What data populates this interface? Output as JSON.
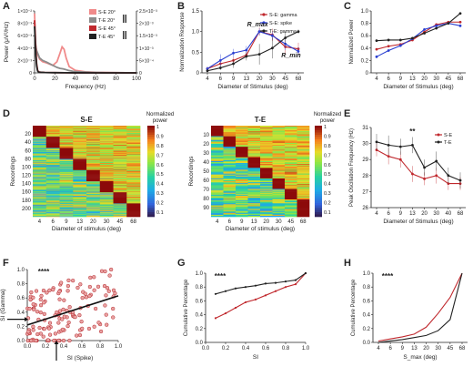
{
  "chart_data": [
    {
      "panel": "A",
      "type": "line",
      "xlabel": "Frequency (Hz)",
      "ylabel": "Power (μV²/Hz)",
      "xlim": [
        0,
        100
      ],
      "xticks": [
        0,
        20,
        40,
        60,
        80,
        100
      ],
      "left_axis": {
        "ylim": [
          0,
          0.01
        ],
        "ticks": [
          0,
          0.002,
          0.004,
          0.006,
          0.008,
          0.01
        ],
        "tick_labels": [
          "0",
          "2×10⁻³",
          "4×10⁻³",
          "6×10⁻³",
          "8×10⁻³",
          "1×10⁻²"
        ]
      },
      "right_axis": {
        "ylim": [
          0,
          0.0025
        ],
        "ticks": [
          0,
          0.0005,
          0.001,
          0.0015,
          0.002,
          0.0025
        ],
        "tick_labels": [
          "0",
          "5×10⁻⁴",
          "1×10⁻³",
          "1.5×10⁻³",
          "2×10⁻³",
          "2.5×10⁻³"
        ]
      },
      "legend": [
        "S-E 20°",
        "T-E 20°",
        "S-E 45°",
        "T-E 45°"
      ],
      "series": [
        {
          "name": "S-E 20°",
          "color": "#f08a8a",
          "axis": "right",
          "x": [
            0,
            1,
            2,
            3,
            5,
            8,
            12,
            18,
            22,
            25,
            27,
            29,
            31,
            34,
            40,
            50,
            60,
            80,
            100
          ],
          "y": [
            0.0024,
            0.0012,
            0.0008,
            0.00075,
            0.00055,
            0.00045,
            0.0004,
            0.0003,
            0.00045,
            0.0008,
            0.00105,
            0.00095,
            0.0006,
            0.00025,
            0.0001,
            4e-05,
            2e-05,
            1e-05,
            0
          ]
        },
        {
          "name": "T-E 20°",
          "color": "#8c8c8c",
          "axis": "right",
          "x": [
            0,
            1,
            2,
            3,
            5,
            8,
            12,
            18,
            22,
            25,
            28,
            30,
            33,
            38,
            45,
            55,
            70,
            100
          ],
          "y": [
            0.0021,
            0.0011,
            0.0009,
            0.0008,
            0.0006,
            0.0005,
            0.00043,
            0.0003,
            0.00022,
            0.00018,
            0.00016,
            0.00014,
            0.0001,
            6e-05,
            4e-05,
            2e-05,
            1e-05,
            0
          ]
        },
        {
          "name": "S-E 45°",
          "color": "#c0282d",
          "axis": "left",
          "x": [
            0,
            1,
            2,
            3,
            4,
            6,
            10,
            20,
            30,
            40,
            60,
            100
          ],
          "y": [
            0.0085,
            0.0045,
            0.0015,
            0.0004,
            0.00015,
            0.0001,
            6e-05,
            4e-05,
            2e-05,
            1e-05,
            0,
            0
          ]
        },
        {
          "name": "T-E 45°",
          "color": "#222222",
          "axis": "left",
          "x": [
            0,
            1,
            2,
            3,
            4,
            6,
            10,
            20,
            30,
            40,
            60,
            100
          ],
          "y": [
            0.0075,
            0.0035,
            0.0012,
            0.0003,
            0.00012,
            8e-05,
            5e-05,
            3e-05,
            2e-05,
            1e-05,
            0,
            0
          ]
        }
      ]
    },
    {
      "panel": "B",
      "type": "line",
      "xlabel": "Diameter of Stimulus (deg)",
      "ylabel": "Normalization Response",
      "categories": [
        "4",
        "6",
        "9",
        "13",
        "20",
        "30",
        "45",
        "68"
      ],
      "ylim": [
        0,
        1.5
      ],
      "yticks": [
        0,
        0.5,
        1.0,
        1.5
      ],
      "ytick_labels": [
        "0",
        "0.5",
        "1.0",
        "1.5"
      ],
      "annotations": [
        "R_max",
        "R_min"
      ],
      "legend": [
        "S-E: gamma",
        "S-E: spike",
        "T-E: gamma"
      ],
      "series": [
        {
          "name": "S-E: gamma",
          "color": "#c0282d",
          "values": [
            0.1,
            0.22,
            0.3,
            0.43,
            1.0,
            0.92,
            0.63,
            0.58
          ],
          "err": [
            0.05,
            0.05,
            0.08,
            0.08,
            0.1,
            0.15,
            0.2,
            0.15
          ]
        },
        {
          "name": "S-E: spike",
          "color": "#2a3fd1",
          "values": [
            0.1,
            0.3,
            0.48,
            0.55,
            1.0,
            0.9,
            0.7,
            0.52
          ],
          "err": [
            0.05,
            0.15,
            0.1,
            0.1,
            0.08,
            0.1,
            0.15,
            0.1
          ]
        },
        {
          "name": "T-E: gamma",
          "color": "#222222",
          "values": [
            0.05,
            0.12,
            0.22,
            0.4,
            0.45,
            0.6,
            0.85,
            1.0
          ],
          "err": [
            0.04,
            0.05,
            0.1,
            0.1,
            0.25,
            0.25,
            0.15,
            0.05
          ]
        }
      ]
    },
    {
      "panel": "C",
      "type": "line",
      "xlabel": "Diameter of Stimulus (deg)",
      "ylabel": "Normalized Power",
      "categories": [
        "4",
        "6",
        "9",
        "13",
        "20",
        "30",
        "45",
        "68"
      ],
      "ylim": [
        0,
        1.0
      ],
      "yticks": [
        0,
        0.2,
        0.4,
        0.6,
        0.8,
        1.0
      ],
      "ytick_labels": [
        "0",
        "0.2",
        "0.4",
        "0.6",
        "0.8",
        "1.0"
      ],
      "series": [
        {
          "name": "S-E: gamma",
          "color": "#c0282d",
          "values": [
            0.38,
            0.43,
            0.46,
            0.53,
            0.66,
            0.78,
            0.82,
            0.82
          ]
        },
        {
          "name": "S-E: spike",
          "color": "#2a3fd1",
          "values": [
            0.26,
            0.36,
            0.44,
            0.55,
            0.7,
            0.76,
            0.8,
            0.76
          ]
        },
        {
          "name": "T-E: gamma",
          "color": "#222222",
          "values": [
            0.52,
            0.53,
            0.53,
            0.56,
            0.64,
            0.72,
            0.8,
            0.96
          ]
        }
      ]
    },
    {
      "panel": "D",
      "type": "heatmap",
      "maps": [
        {
          "title": "S-E",
          "ylabel": "Recordings",
          "xlabel": "Diameter of stimulus (deg)",
          "xticks": [
            "4",
            "6",
            "9",
            "13",
            "20",
            "30",
            "45",
            "68"
          ],
          "yticks": [
            "20",
            "40",
            "60",
            "80",
            "100",
            "120",
            "140",
            "160",
            "180",
            "200"
          ],
          "rows": 205
        },
        {
          "title": "T-E",
          "ylabel": "Recordings",
          "xlabel": "Diameter of stimulus (deg)",
          "xticks": [
            "4",
            "6",
            "9",
            "13",
            "20",
            "30",
            "45",
            "68"
          ],
          "yticks": [
            "10",
            "20",
            "30",
            "40",
            "50",
            "60",
            "70",
            "80",
            "90"
          ],
          "rows": 95
        }
      ],
      "colorbar": {
        "label": "Normalized power",
        "ticks": [
          "1",
          "0.9",
          "0.8",
          "0.7",
          "0.6",
          "0.5",
          "0.4",
          "0.3",
          "0.2",
          "0.1"
        ]
      }
    },
    {
      "panel": "E",
      "type": "line",
      "xlabel": "Diameter of Stimulus (deg)",
      "ylabel": "Peak Oscillation Frequency (Hz)",
      "categories": [
        "4",
        "6",
        "9",
        "13",
        "20",
        "30",
        "40",
        "68"
      ],
      "ylim": [
        26,
        31
      ],
      "yticks": [
        26,
        27,
        28,
        29,
        30,
        31
      ],
      "annotations": [
        "**"
      ],
      "legend": [
        "S-E",
        "T-E"
      ],
      "series": [
        {
          "name": "S-E",
          "color": "#c0282d",
          "values": [
            29.6,
            29.2,
            29.0,
            28.1,
            27.8,
            28.0,
            27.5,
            27.5
          ],
          "err": [
            0.4,
            0.5,
            0.5,
            0.5,
            0.4,
            0.5,
            0.4,
            0.4
          ]
        },
        {
          "name": "T-E",
          "color": "#222222",
          "values": [
            30.1,
            29.9,
            29.8,
            29.9,
            28.5,
            28.9,
            28.0,
            27.7
          ],
          "err": [
            0.5,
            0.6,
            0.5,
            0.5,
            0.5,
            0.6,
            0.5,
            0.5
          ]
        }
      ]
    },
    {
      "panel": "F",
      "type": "scatter",
      "xlabel": "SI (Spike)",
      "ylabel": "SI (Gamma)",
      "xlim": [
        0,
        1.0
      ],
      "ylim": [
        0,
        1.0
      ],
      "ticks": [
        "0.0",
        "0.2",
        "0.4",
        "0.6",
        "0.8",
        "1.0"
      ],
      "annotations": [
        "****"
      ],
      "fit": {
        "x": [
          0,
          1.0
        ],
        "y": [
          0.22,
          0.63
        ]
      },
      "points_seed": 7,
      "n_points": 150
    },
    {
      "panel": "G",
      "type": "line",
      "xlabel": "SI",
      "ylabel": "Cumulative Percentage",
      "xlim": [
        0,
        1.0
      ],
      "ylim": [
        0,
        1.0
      ],
      "xticks": [
        "0.0",
        "0.2",
        "0.4",
        "0.6",
        "0.8",
        "1.0"
      ],
      "yticks": [
        "0.0",
        "0.2",
        "0.4",
        "0.6",
        "0.8",
        "1.0"
      ],
      "annotations": [
        "****"
      ],
      "series": [
        {
          "name": "S-E",
          "color": "#c0282d",
          "x": [
            0.1,
            0.2,
            0.3,
            0.4,
            0.5,
            0.6,
            0.7,
            0.8,
            0.9,
            1.0
          ],
          "y": [
            0.35,
            0.42,
            0.5,
            0.58,
            0.62,
            0.68,
            0.74,
            0.8,
            0.84,
            1.0
          ]
        },
        {
          "name": "T-E",
          "color": "#222222",
          "x": [
            0.1,
            0.2,
            0.3,
            0.4,
            0.5,
            0.6,
            0.7,
            0.8,
            0.9,
            1.0
          ],
          "y": [
            0.7,
            0.74,
            0.78,
            0.8,
            0.82,
            0.85,
            0.86,
            0.88,
            0.9,
            1.0
          ]
        }
      ]
    },
    {
      "panel": "H",
      "type": "line",
      "xlabel": "S_max (deg)",
      "ylabel": "Cumulative Percentage",
      "categories": [
        "4",
        "6",
        "9",
        "13",
        "20",
        "30",
        "45",
        "68"
      ],
      "ylim": [
        0,
        1.0
      ],
      "yticks": [
        "0.0",
        "0.2",
        "0.4",
        "0.6",
        "0.8",
        "1.0"
      ],
      "annotations": [
        "****"
      ],
      "series": [
        {
          "name": "S-E",
          "color": "#c0282d",
          "values": [
            0.02,
            0.05,
            0.08,
            0.12,
            0.22,
            0.42,
            0.65,
            1.0
          ]
        },
        {
          "name": "T-E",
          "color": "#222222",
          "values": [
            0.0,
            0.02,
            0.04,
            0.07,
            0.1,
            0.17,
            0.33,
            1.0
          ]
        }
      ]
    }
  ]
}
